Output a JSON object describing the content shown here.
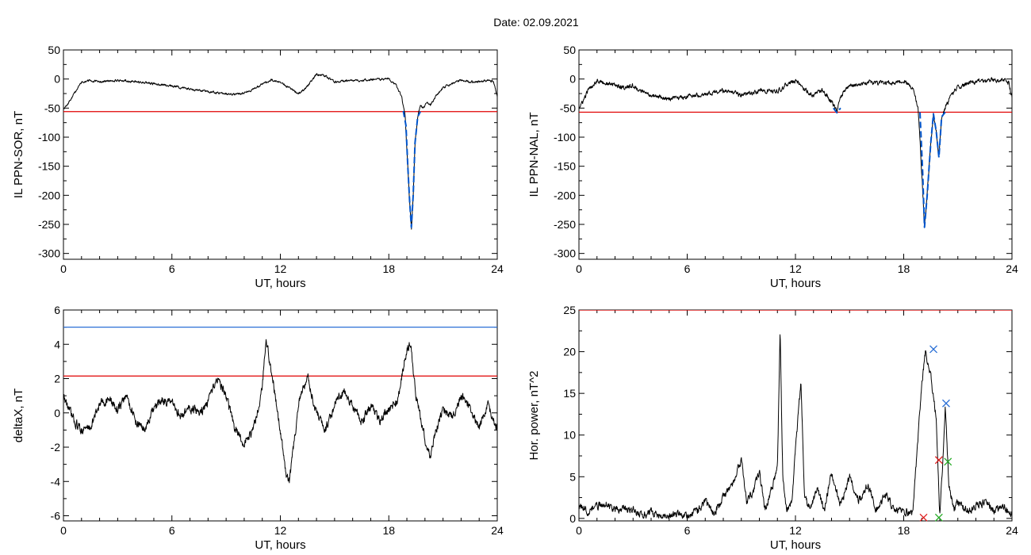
{
  "title": "Date:  02.09.2021",
  "colors": {
    "threshold": "#e00000",
    "storm": "#0055cc",
    "upper": "#2a6fd6",
    "trace": "#000000",
    "marker_blue": "#2a6fd6",
    "marker_red": "#e02020",
    "marker_green": "#22aa22"
  },
  "chart_data": [
    {
      "id": "sor",
      "type": "line",
      "xlabel": "UT, hours",
      "ylabel": "IL PPN-SOR, nT",
      "xlim": [
        0,
        24
      ],
      "ylim": [
        -310,
        50
      ],
      "xticks": [
        0,
        6,
        12,
        18,
        24
      ],
      "yticks": [
        50,
        0,
        -50,
        -100,
        -150,
        -200,
        -250,
        -300
      ],
      "thresholds": [
        {
          "y": -56,
          "color": "#e00000"
        }
      ],
      "series": [
        {
          "color": "#000000",
          "noise": 2.5,
          "seed": 11,
          "x": [
            0,
            0.2,
            0.5,
            1,
            1.5,
            2,
            3,
            4,
            5,
            6,
            7,
            8,
            9,
            9.5,
            10,
            10.5,
            11,
            11.5,
            12,
            12.5,
            13,
            13.5,
            14,
            14.5,
            15,
            16,
            17,
            18,
            18.4,
            18.7,
            18.9,
            19.05,
            19.15,
            19.25,
            19.35,
            19.45,
            19.6,
            19.75,
            19.9,
            20.1,
            20.3,
            20.6,
            21,
            21.5,
            22,
            22.5,
            23,
            23.5,
            23.8,
            24
          ],
          "y": [
            -50,
            -45,
            -30,
            -5,
            -3,
            -5,
            -2,
            -5,
            -8,
            -12,
            -17,
            -22,
            -25,
            -26,
            -24,
            -18,
            -8,
            -2,
            -6,
            -15,
            -26,
            -12,
            8,
            5,
            -5,
            -3,
            -1,
            0,
            -10,
            -30,
            -60,
            -150,
            -210,
            -258,
            -200,
            -110,
            -65,
            -45,
            -50,
            -40,
            -45,
            -30,
            -15,
            -8,
            -2,
            -5,
            -4,
            -2,
            -5,
            -30
          ]
        },
        {
          "color": "#0055cc",
          "noise": 0,
          "seed": 0,
          "x": [
            18.8,
            18.95,
            19.05,
            19.15,
            19.25,
            19.35,
            19.45,
            19.6,
            19.75
          ],
          "y": [
            -55,
            -80,
            -150,
            -210,
            -255,
            -200,
            -110,
            -65,
            -56
          ]
        }
      ],
      "markers": []
    },
    {
      "id": "nal",
      "type": "line",
      "xlabel": "UT, hours",
      "ylabel": "IL PPN-NAL, nT",
      "xlim": [
        0,
        24
      ],
      "ylim": [
        -310,
        50
      ],
      "xticks": [
        0,
        6,
        12,
        18,
        24
      ],
      "yticks": [
        50,
        0,
        -50,
        -100,
        -150,
        -200,
        -250,
        -300
      ],
      "thresholds": [
        {
          "y": -57,
          "color": "#e00000"
        }
      ],
      "series": [
        {
          "color": "#000000",
          "noise": 5,
          "seed": 23,
          "x": [
            0,
            0.2,
            0.5,
            1,
            1.5,
            2,
            2.5,
            3,
            3.5,
            4,
            5,
            6,
            7,
            8,
            9,
            10,
            11,
            11.5,
            12,
            12.5,
            13,
            13.5,
            14,
            14.3,
            14.5,
            15,
            15.5,
            16,
            17,
            18,
            18.5,
            18.8,
            19.0,
            19.15,
            19.3,
            19.5,
            19.65,
            19.8,
            19.95,
            20.1,
            20.3,
            20.6,
            21,
            21.5,
            22,
            22.5,
            23,
            23.5,
            23.8,
            24
          ],
          "y": [
            -50,
            -40,
            -20,
            -2,
            -8,
            -10,
            -15,
            -12,
            -22,
            -28,
            -35,
            -30,
            -25,
            -20,
            -28,
            -20,
            -22,
            -10,
            -2,
            -18,
            -28,
            -20,
            -38,
            -55,
            -30,
            -10,
            -12,
            -5,
            -8,
            -3,
            -15,
            -50,
            -160,
            -255,
            -200,
            -110,
            -60,
            -90,
            -135,
            -65,
            -50,
            -30,
            -15,
            -8,
            -5,
            -3,
            -2,
            0,
            -5,
            -30
          ]
        },
        {
          "color": "#0055cc",
          "noise": 0,
          "seed": 0,
          "x": [
            18.9,
            19.05,
            19.15,
            19.3,
            19.5,
            19.65,
            19.8,
            19.95,
            20.1,
            20.3
          ],
          "y": [
            -57,
            -160,
            -255,
            -200,
            -110,
            -60,
            -90,
            -135,
            -65,
            -57
          ]
        },
        {
          "color": "#0055cc",
          "noise": 0,
          "seed": 0,
          "x": [
            14.1,
            14.3,
            14.5
          ],
          "y": [
            -50,
            -58,
            -50
          ]
        }
      ],
      "markers": []
    },
    {
      "id": "deltax",
      "type": "line",
      "xlabel": "UT, hours",
      "ylabel": "deltaX, nT",
      "xlim": [
        0,
        24
      ],
      "ylim": [
        -6.3,
        6
      ],
      "xticks": [
        0,
        6,
        12,
        18,
        24
      ],
      "yticks": [
        6,
        4,
        2,
        0,
        -2,
        -4,
        -6
      ],
      "thresholds": [
        {
          "y": 5.0,
          "color": "#2a6fd6"
        },
        {
          "y": 2.15,
          "color": "#e00000"
        }
      ],
      "series": [
        {
          "color": "#000000",
          "noise": 0.35,
          "seed": 37,
          "x": [
            0,
            0.3,
            0.6,
            1,
            1.5,
            2,
            2.5,
            3,
            3.5,
            4,
            4.5,
            5,
            5.5,
            6,
            6.5,
            7,
            7.5,
            8,
            8.5,
            9,
            9.5,
            10,
            10.5,
            11,
            11.2,
            11.5,
            12,
            12.3,
            12.5,
            13,
            13.5,
            14,
            14.5,
            15,
            15.5,
            16,
            16.5,
            17,
            17.5,
            18,
            18.5,
            19,
            19.2,
            19.5,
            20,
            20.3,
            20.6,
            21,
            21.5,
            22,
            22.5,
            23,
            23.5,
            24
          ],
          "y": [
            1.0,
            0.2,
            -0.5,
            -1.0,
            -0.8,
            0.5,
            0.8,
            0.2,
            1.0,
            -0.5,
            -1.0,
            0.2,
            0.8,
            0.5,
            -0.2,
            0.3,
            0.0,
            0.5,
            2.0,
            1.0,
            -1.0,
            -1.8,
            -1.0,
            1.5,
            4.3,
            2.5,
            -1.0,
            -3.5,
            -4.1,
            0.5,
            2.2,
            0.0,
            -1.0,
            0.5,
            1.2,
            0.3,
            -0.5,
            0.5,
            -0.5,
            0.2,
            0.8,
            3.8,
            4.0,
            1.0,
            -1.5,
            -2.6,
            -1.0,
            0.3,
            -0.2,
            1.0,
            0.2,
            -0.8,
            0.5,
            -1.0
          ]
        }
      ],
      "markers": []
    },
    {
      "id": "power",
      "type": "line",
      "xlabel": "UT, hours",
      "ylabel": "Hor. power, nT^2",
      "xlim": [
        0,
        24
      ],
      "ylim": [
        -0.3,
        25
      ],
      "xticks": [
        0,
        6,
        12,
        18,
        24
      ],
      "yticks": [
        0,
        5,
        10,
        15,
        20,
        25
      ],
      "thresholds": [
        {
          "y": 25,
          "color": "#e00000"
        }
      ],
      "series": [
        {
          "color": "#000000",
          "noise": 0.6,
          "seed": 53,
          "clip_min": 0,
          "x": [
            0,
            0.5,
            1,
            1.5,
            2,
            2.5,
            3,
            3.5,
            4,
            4.5,
            5,
            5.5,
            6,
            6.5,
            7,
            7.5,
            8,
            8.5,
            9,
            9.3,
            9.6,
            10,
            10.3,
            10.6,
            11,
            11.15,
            11.3,
            11.5,
            11.8,
            12,
            12.3,
            12.5,
            12.8,
            13.2,
            13.6,
            14,
            14.5,
            15,
            15.5,
            16,
            16.5,
            17,
            17.5,
            18,
            18.5,
            19,
            19.2,
            19.5,
            19.8,
            20.0,
            20.15,
            20.3,
            20.5,
            20.8,
            21,
            21.5,
            22,
            22.5,
            23,
            23.5,
            24
          ],
          "y": [
            1.5,
            0.8,
            1.5,
            1.8,
            1.0,
            1.2,
            1.0,
            0.3,
            0.8,
            0.2,
            0.3,
            0.5,
            0.2,
            0.8,
            2.0,
            0.6,
            2.5,
            4.0,
            7.0,
            2.0,
            3.0,
            5.5,
            1.0,
            3.0,
            6.0,
            22.5,
            5.0,
            1.0,
            2.0,
            8.0,
            16.5,
            3.0,
            1.0,
            3.5,
            1.0,
            5.5,
            1.5,
            5.0,
            2.0,
            4.0,
            1.0,
            3.0,
            1.0,
            1.0,
            0.5,
            16.0,
            20.0,
            17.0,
            12.0,
            0.5,
            6.0,
            13.5,
            4.0,
            1.0,
            2.0,
            0.8,
            1.5,
            2.0,
            1.0,
            1.5,
            0.5
          ]
        }
      ],
      "markers": [
        {
          "x": 19.65,
          "y": 20.3,
          "color": "#2a6fd6",
          "symbol": "x"
        },
        {
          "x": 20.35,
          "y": 13.8,
          "color": "#2a6fd6",
          "symbol": "x"
        },
        {
          "x": 19.95,
          "y": 7.0,
          "color": "#e02020",
          "symbol": "x"
        },
        {
          "x": 20.45,
          "y": 6.8,
          "color": "#22aa22",
          "symbol": "x"
        },
        {
          "x": 19.1,
          "y": 0.1,
          "color": "#e02020",
          "symbol": "x"
        },
        {
          "x": 19.95,
          "y": 0.1,
          "color": "#22aa22",
          "symbol": "x"
        }
      ]
    }
  ]
}
